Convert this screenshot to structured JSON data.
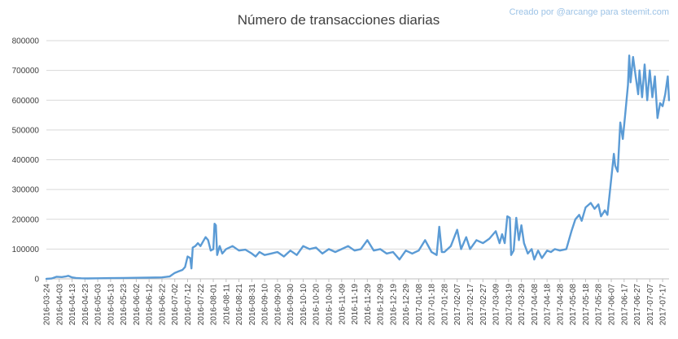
{
  "chart_data": {
    "type": "line",
    "title": "Número de transacciones diarias",
    "subtitle": "Creado por @arcange para steemit.com",
    "xlabel": "",
    "ylabel": "",
    "ylim": [
      0,
      800000
    ],
    "yticks": [
      0,
      100000,
      200000,
      300000,
      400000,
      500000,
      600000,
      700000,
      800000
    ],
    "ytick_labels": [
      "0",
      "100000",
      "200000",
      "300000",
      "400000",
      "500000",
      "600000",
      "700000",
      "800000"
    ],
    "x_start": "2016-03-24",
    "x_end": "2017-07-22",
    "xtick_labels": [
      "2016-03-24",
      "2016-04-03",
      "2016-04-13",
      "2016-04-23",
      "2016-05-03",
      "2016-05-13",
      "2016-05-23",
      "2016-06-02",
      "2016-06-12",
      "2016-06-22",
      "2016-07-02",
      "2016-07-12",
      "2016-07-22",
      "2016-08-01",
      "2016-08-11",
      "2016-08-21",
      "2016-08-31",
      "2016-09-10",
      "2016-09-20",
      "2016-09-30",
      "2016-10-10",
      "2016-10-20",
      "2016-10-30",
      "2016-11-09",
      "2016-11-19",
      "2016-11-29",
      "2016-12-09",
      "2016-12-19",
      "2016-12-29",
      "2017-01-08",
      "2017-01-18",
      "2017-01-28",
      "2017-02-07",
      "2017-02-17",
      "2017-02-27",
      "2017-03-09",
      "2017-03-19",
      "2017-03-29",
      "2017-04-08",
      "2017-04-18",
      "2017-04-28",
      "2017-05-08",
      "2017-05-18",
      "2017-05-28",
      "2017-06-07",
      "2017-06-17",
      "2017-06-27",
      "2017-07-07",
      "2017-07-17"
    ],
    "grid": true,
    "legend": "none",
    "series": [
      {
        "color": "#5b9bd5",
        "points": [
          {
            "x": "2016-03-24",
            "y": 0
          },
          {
            "x": "2016-03-28",
            "y": 1000
          },
          {
            "x": "2016-04-01",
            "y": 7000
          },
          {
            "x": "2016-04-05",
            "y": 6000
          },
          {
            "x": "2016-04-08",
            "y": 8000
          },
          {
            "x": "2016-04-10",
            "y": 10000
          },
          {
            "x": "2016-04-13",
            "y": 5000
          },
          {
            "x": "2016-04-16",
            "y": 3000
          },
          {
            "x": "2016-04-20",
            "y": 2000
          },
          {
            "x": "2016-04-25",
            "y": 1500
          },
          {
            "x": "2016-05-03",
            "y": 2000
          },
          {
            "x": "2016-05-13",
            "y": 2500
          },
          {
            "x": "2016-05-23",
            "y": 3000
          },
          {
            "x": "2016-06-02",
            "y": 3500
          },
          {
            "x": "2016-06-12",
            "y": 4000
          },
          {
            "x": "2016-06-22",
            "y": 5000
          },
          {
            "x": "2016-06-28",
            "y": 8000
          },
          {
            "x": "2016-07-02",
            "y": 20000
          },
          {
            "x": "2016-07-05",
            "y": 25000
          },
          {
            "x": "2016-07-08",
            "y": 30000
          },
          {
            "x": "2016-07-10",
            "y": 40000
          },
          {
            "x": "2016-07-12",
            "y": 75000
          },
          {
            "x": "2016-07-14",
            "y": 70000
          },
          {
            "x": "2016-07-15",
            "y": 35000
          },
          {
            "x": "2016-07-16",
            "y": 105000
          },
          {
            "x": "2016-07-18",
            "y": 110000
          },
          {
            "x": "2016-07-20",
            "y": 120000
          },
          {
            "x": "2016-07-22",
            "y": 110000
          },
          {
            "x": "2016-07-24",
            "y": 125000
          },
          {
            "x": "2016-07-26",
            "y": 140000
          },
          {
            "x": "2016-07-28",
            "y": 130000
          },
          {
            "x": "2016-07-30",
            "y": 95000
          },
          {
            "x": "2016-08-01",
            "y": 100000
          },
          {
            "x": "2016-08-02",
            "y": 185000
          },
          {
            "x": "2016-08-03",
            "y": 180000
          },
          {
            "x": "2016-08-04",
            "y": 80000
          },
          {
            "x": "2016-08-06",
            "y": 110000
          },
          {
            "x": "2016-08-08",
            "y": 85000
          },
          {
            "x": "2016-08-11",
            "y": 100000
          },
          {
            "x": "2016-08-16",
            "y": 110000
          },
          {
            "x": "2016-08-21",
            "y": 95000
          },
          {
            "x": "2016-08-26",
            "y": 98000
          },
          {
            "x": "2016-08-31",
            "y": 85000
          },
          {
            "x": "2016-09-03",
            "y": 75000
          },
          {
            "x": "2016-09-06",
            "y": 90000
          },
          {
            "x": "2016-09-10",
            "y": 80000
          },
          {
            "x": "2016-09-15",
            "y": 85000
          },
          {
            "x": "2016-09-20",
            "y": 90000
          },
          {
            "x": "2016-09-25",
            "y": 75000
          },
          {
            "x": "2016-09-30",
            "y": 95000
          },
          {
            "x": "2016-10-05",
            "y": 80000
          },
          {
            "x": "2016-10-10",
            "y": 110000
          },
          {
            "x": "2016-10-15",
            "y": 100000
          },
          {
            "x": "2016-10-20",
            "y": 105000
          },
          {
            "x": "2016-10-25",
            "y": 85000
          },
          {
            "x": "2016-10-30",
            "y": 100000
          },
          {
            "x": "2016-11-04",
            "y": 90000
          },
          {
            "x": "2016-11-09",
            "y": 100000
          },
          {
            "x": "2016-11-14",
            "y": 110000
          },
          {
            "x": "2016-11-19",
            "y": 95000
          },
          {
            "x": "2016-11-24",
            "y": 100000
          },
          {
            "x": "2016-11-29",
            "y": 130000
          },
          {
            "x": "2016-12-04",
            "y": 95000
          },
          {
            "x": "2016-12-09",
            "y": 100000
          },
          {
            "x": "2016-12-14",
            "y": 85000
          },
          {
            "x": "2016-12-19",
            "y": 90000
          },
          {
            "x": "2016-12-24",
            "y": 65000
          },
          {
            "x": "2016-12-29",
            "y": 95000
          },
          {
            "x": "2017-01-03",
            "y": 85000
          },
          {
            "x": "2017-01-08",
            "y": 95000
          },
          {
            "x": "2017-01-13",
            "y": 130000
          },
          {
            "x": "2017-01-18",
            "y": 90000
          },
          {
            "x": "2017-01-22",
            "y": 80000
          },
          {
            "x": "2017-01-24",
            "y": 175000
          },
          {
            "x": "2017-01-26",
            "y": 90000
          },
          {
            "x": "2017-01-28",
            "y": 90000
          },
          {
            "x": "2017-02-02",
            "y": 110000
          },
          {
            "x": "2017-02-07",
            "y": 165000
          },
          {
            "x": "2017-02-10",
            "y": 100000
          },
          {
            "x": "2017-02-14",
            "y": 140000
          },
          {
            "x": "2017-02-17",
            "y": 100000
          },
          {
            "x": "2017-02-22",
            "y": 130000
          },
          {
            "x": "2017-02-27",
            "y": 120000
          },
          {
            "x": "2017-03-04",
            "y": 135000
          },
          {
            "x": "2017-03-09",
            "y": 160000
          },
          {
            "x": "2017-03-12",
            "y": 120000
          },
          {
            "x": "2017-03-14",
            "y": 150000
          },
          {
            "x": "2017-03-16",
            "y": 120000
          },
          {
            "x": "2017-03-18",
            "y": 210000
          },
          {
            "x": "2017-03-20",
            "y": 205000
          },
          {
            "x": "2017-03-21",
            "y": 80000
          },
          {
            "x": "2017-03-23",
            "y": 95000
          },
          {
            "x": "2017-03-25",
            "y": 205000
          },
          {
            "x": "2017-03-27",
            "y": 130000
          },
          {
            "x": "2017-03-29",
            "y": 180000
          },
          {
            "x": "2017-03-31",
            "y": 120000
          },
          {
            "x": "2017-04-03",
            "y": 85000
          },
          {
            "x": "2017-04-06",
            "y": 100000
          },
          {
            "x": "2017-04-08",
            "y": 65000
          },
          {
            "x": "2017-04-11",
            "y": 95000
          },
          {
            "x": "2017-04-14",
            "y": 70000
          },
          {
            "x": "2017-04-18",
            "y": 95000
          },
          {
            "x": "2017-04-21",
            "y": 90000
          },
          {
            "x": "2017-04-24",
            "y": 100000
          },
          {
            "x": "2017-04-28",
            "y": 95000
          },
          {
            "x": "2017-05-03",
            "y": 100000
          },
          {
            "x": "2017-05-07",
            "y": 160000
          },
          {
            "x": "2017-05-10",
            "y": 200000
          },
          {
            "x": "2017-05-13",
            "y": 215000
          },
          {
            "x": "2017-05-15",
            "y": 195000
          },
          {
            "x": "2017-05-18",
            "y": 240000
          },
          {
            "x": "2017-05-22",
            "y": 255000
          },
          {
            "x": "2017-05-25",
            "y": 235000
          },
          {
            "x": "2017-05-28",
            "y": 250000
          },
          {
            "x": "2017-05-30",
            "y": 210000
          },
          {
            "x": "2017-06-02",
            "y": 230000
          },
          {
            "x": "2017-06-04",
            "y": 215000
          },
          {
            "x": "2017-06-06",
            "y": 295000
          },
          {
            "x": "2017-06-09",
            "y": 420000
          },
          {
            "x": "2017-06-10",
            "y": 380000
          },
          {
            "x": "2017-06-12",
            "y": 360000
          },
          {
            "x": "2017-06-14",
            "y": 525000
          },
          {
            "x": "2017-06-16",
            "y": 470000
          },
          {
            "x": "2017-06-18",
            "y": 560000
          },
          {
            "x": "2017-06-20",
            "y": 650000
          },
          {
            "x": "2017-06-21",
            "y": 750000
          },
          {
            "x": "2017-06-22",
            "y": 660000
          },
          {
            "x": "2017-06-24",
            "y": 745000
          },
          {
            "x": "2017-06-26",
            "y": 680000
          },
          {
            "x": "2017-06-28",
            "y": 620000
          },
          {
            "x": "2017-06-29",
            "y": 700000
          },
          {
            "x": "2017-07-01",
            "y": 610000
          },
          {
            "x": "2017-07-03",
            "y": 720000
          },
          {
            "x": "2017-07-05",
            "y": 600000
          },
          {
            "x": "2017-07-07",
            "y": 700000
          },
          {
            "x": "2017-07-09",
            "y": 610000
          },
          {
            "x": "2017-07-11",
            "y": 680000
          },
          {
            "x": "2017-07-13",
            "y": 540000
          },
          {
            "x": "2017-07-15",
            "y": 590000
          },
          {
            "x": "2017-07-17",
            "y": 580000
          },
          {
            "x": "2017-07-19",
            "y": 620000
          },
          {
            "x": "2017-07-21",
            "y": 680000
          },
          {
            "x": "2017-07-22",
            "y": 600000
          }
        ]
      }
    ]
  }
}
